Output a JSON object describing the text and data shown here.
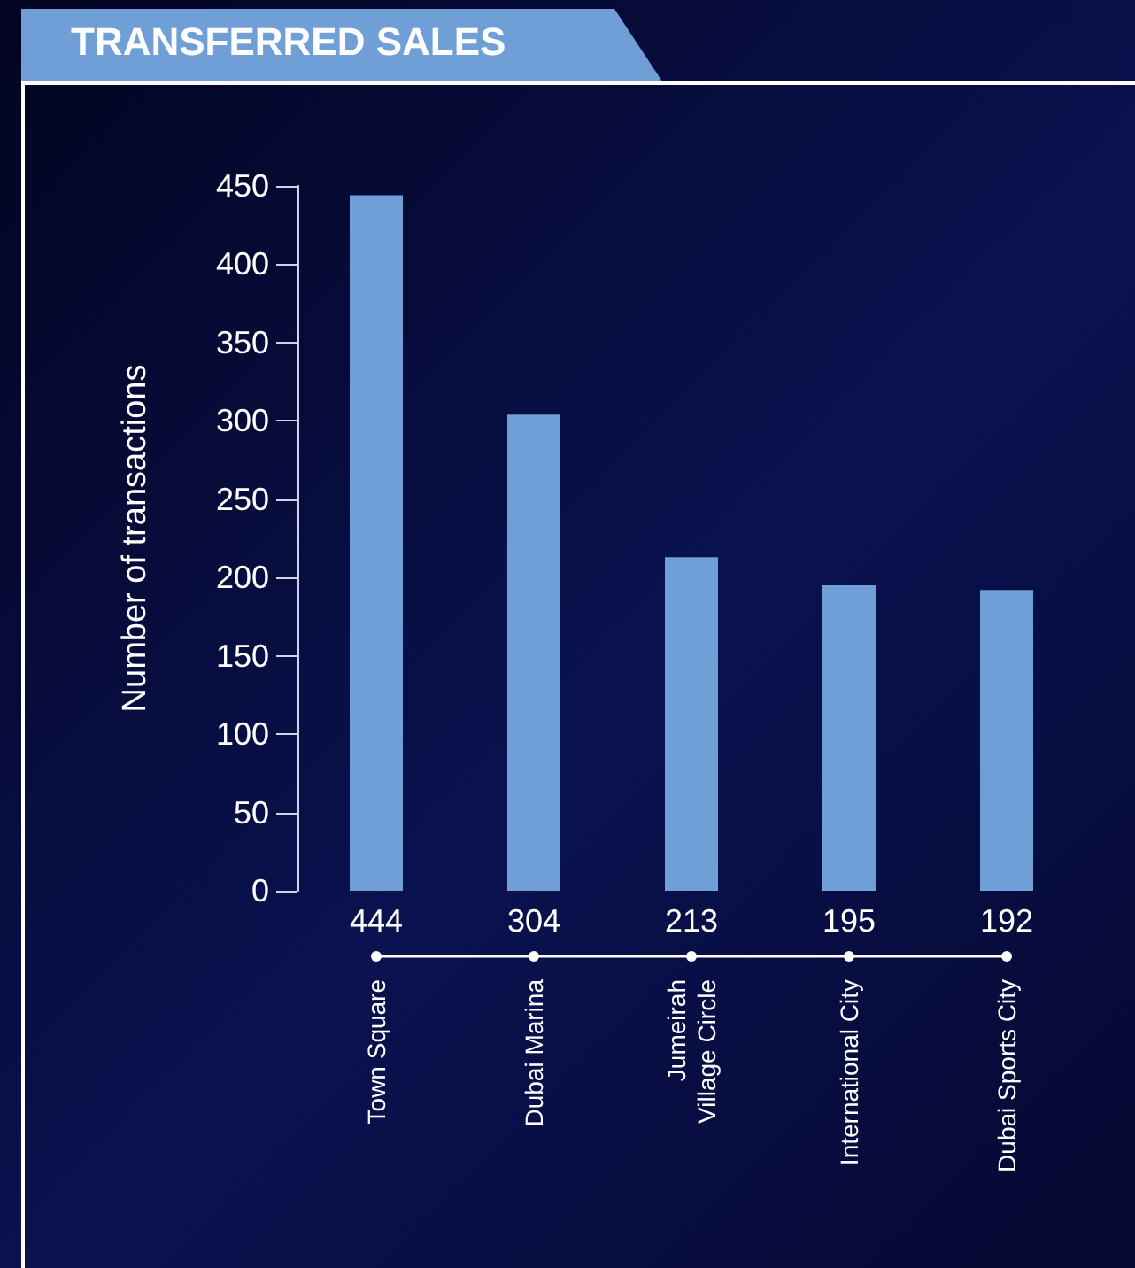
{
  "chart_data": {
    "type": "bar",
    "title": "TRANSFERRED SALES",
    "ylabel": "Number of transactions",
    "categories": [
      "Town Square",
      "Dubai Marina",
      "Jumeirah\nVillage Circle",
      "International City",
      "Dubai Sports City"
    ],
    "values": [
      444,
      304,
      213,
      195,
      192
    ],
    "color": "#6f9fd6",
    "ylim": [
      0,
      450
    ],
    "yticks": [
      0,
      50,
      100,
      150,
      200,
      250,
      300,
      350,
      400,
      450
    ],
    "grid": false,
    "data_labels": true
  }
}
